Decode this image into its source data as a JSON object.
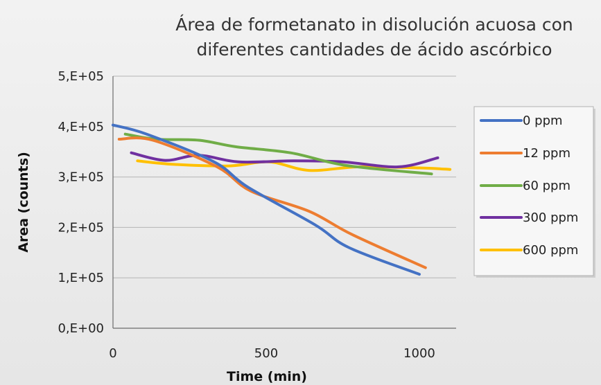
{
  "chart_data": {
    "type": "line",
    "title_lines": [
      "Área de formetanato in disolución acuosa con",
      "diferentes cantidades de ácido ascórbico"
    ],
    "xlabel": "Time (min)",
    "ylabel": "Area (counts)",
    "xlim": [
      0,
      1120
    ],
    "ylim": [
      0,
      500000
    ],
    "x_ticks": [
      0,
      500,
      1000
    ],
    "x_tick_labels": [
      "0",
      "500",
      "1000"
    ],
    "y_ticks": [
      0,
      100000,
      200000,
      300000,
      400000,
      500000
    ],
    "y_tick_labels": [
      "0,E+00",
      "1,E+05",
      "2,E+05",
      "3,E+05",
      "4,E+05",
      "5,E+05"
    ],
    "grid": "horizontal",
    "legend_position": "right",
    "series": [
      {
        "name": "0 ppm",
        "color": "#4472c4",
        "x": [
          0,
          110,
          330,
          440,
          660,
          770,
          1000
        ],
        "y": [
          403000,
          385000,
          330000,
          280000,
          205000,
          160000,
          107000
        ]
      },
      {
        "name": "12 ppm",
        "color": "#ed7d31",
        "x": [
          20,
          130,
          340,
          450,
          640,
          780,
          1020
        ],
        "y": [
          375000,
          373000,
          320000,
          272000,
          232000,
          186000,
          120000
        ]
      },
      {
        "name": "60 ppm",
        "color": "#70ad47",
        "x": [
          40,
          140,
          280,
          400,
          580,
          760,
          1040
        ],
        "y": [
          385000,
          375000,
          373000,
          360000,
          348000,
          323000,
          306000
        ]
      },
      {
        "name": "300 ppm",
        "color": "#7030a0",
        "x": [
          60,
          170,
          280,
          410,
          590,
          750,
          930,
          1060
        ],
        "y": [
          348000,
          333000,
          343000,
          330000,
          332000,
          330000,
          320000,
          338000
        ]
      },
      {
        "name": "600 ppm",
        "color": "#ffc000",
        "x": [
          80,
          200,
          380,
          510,
          640,
          800,
          1000,
          1100
        ],
        "y": [
          332000,
          325000,
          322000,
          330000,
          313000,
          320000,
          318000,
          315000
        ]
      }
    ]
  }
}
